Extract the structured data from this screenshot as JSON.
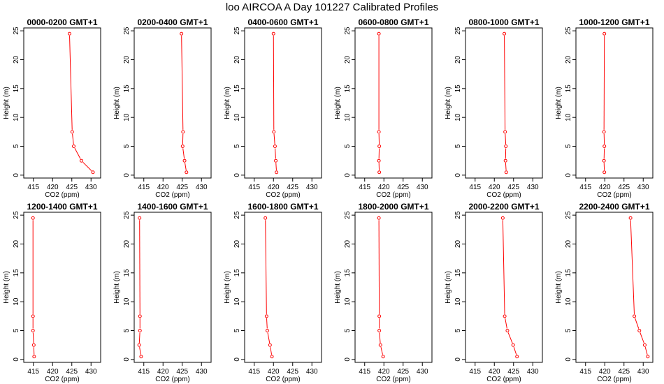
{
  "title": "loo AIRCOA A  Day 101227  Calibrated Profiles",
  "colors": {
    "line": "#ff0000",
    "axis": "#000000",
    "background": "#ffffff"
  },
  "chart_data": [
    {
      "type": "line",
      "title": "0000-0200 GMT+1",
      "xlabel": "CO2 (ppm)",
      "ylabel": "Height (m)",
      "xlim": [
        412.5,
        432.5
      ],
      "ylim": [
        -0.5,
        25.5
      ],
      "xticks": [
        415,
        420,
        425,
        430
      ],
      "yticks": [
        0,
        5,
        10,
        15,
        20,
        25
      ],
      "series": [
        {
          "x": [
            430.5,
            427.5,
            425.5,
            425.1,
            424.4
          ],
          "y": [
            0.5,
            2.5,
            5,
            7.5,
            24.5
          ]
        }
      ]
    },
    {
      "type": "line",
      "title": "0200-0400 GMT+1",
      "xlabel": "CO2 (ppm)",
      "ylabel": "Height (m)",
      "xlim": [
        412.5,
        432.5
      ],
      "ylim": [
        -0.5,
        25.5
      ],
      "xticks": [
        415,
        420,
        425,
        430
      ],
      "yticks": [
        0,
        5,
        10,
        15,
        20,
        25
      ],
      "series": [
        {
          "x": [
            426.1,
            425.6,
            425.1,
            425.2,
            424.8
          ],
          "y": [
            0.5,
            2.5,
            5,
            7.5,
            24.5
          ]
        }
      ]
    },
    {
      "type": "line",
      "title": "0400-0600 GMT+1",
      "xlabel": "CO2 (ppm)",
      "ylabel": "Height (m)",
      "xlim": [
        412.5,
        432.5
      ],
      "ylim": [
        -0.5,
        25.5
      ],
      "xticks": [
        415,
        420,
        425,
        430
      ],
      "yticks": [
        0,
        5,
        10,
        15,
        20,
        25
      ],
      "series": [
        {
          "x": [
            420.8,
            420.6,
            420.4,
            420.1,
            420.0
          ],
          "y": [
            0.5,
            2.5,
            5,
            7.5,
            24.5
          ]
        }
      ]
    },
    {
      "type": "line",
      "title": "0600-0800 GMT+1",
      "xlabel": "CO2 (ppm)",
      "ylabel": "Height (m)",
      "xlim": [
        412.5,
        432.5
      ],
      "ylim": [
        -0.5,
        25.5
      ],
      "xticks": [
        415,
        420,
        425,
        430
      ],
      "yticks": [
        0,
        5,
        10,
        15,
        20,
        25
      ],
      "series": [
        {
          "x": [
            418.8,
            418.7,
            418.8,
            418.7,
            418.7
          ],
          "y": [
            0.5,
            2.5,
            5,
            7.5,
            24.5
          ]
        }
      ]
    },
    {
      "type": "line",
      "title": "0800-1000 GMT+1",
      "xlabel": "CO2 (ppm)",
      "ylabel": "Height (m)",
      "xlim": [
        412.5,
        432.5
      ],
      "ylim": [
        -0.5,
        25.5
      ],
      "xticks": [
        415,
        420,
        425,
        430
      ],
      "yticks": [
        0,
        5,
        10,
        15,
        20,
        25
      ],
      "series": [
        {
          "x": [
            423.1,
            422.9,
            423.0,
            422.8,
            422.6
          ],
          "y": [
            0.5,
            2.5,
            5,
            7.5,
            24.5
          ]
        }
      ]
    },
    {
      "type": "line",
      "title": "1000-1200 GMT+1",
      "xlabel": "CO2 (ppm)",
      "ylabel": "Height (m)",
      "xlim": [
        412.5,
        432.5
      ],
      "ylim": [
        -0.5,
        25.5
      ],
      "xticks": [
        415,
        420,
        425,
        430
      ],
      "yticks": [
        0,
        5,
        10,
        15,
        20,
        25
      ],
      "series": [
        {
          "x": [
            419.9,
            419.8,
            419.9,
            419.8,
            419.9
          ],
          "y": [
            0.5,
            2.5,
            5,
            7.5,
            24.5
          ]
        }
      ]
    },
    {
      "type": "line",
      "title": "1200-1400 GMT+1",
      "xlabel": "CO2 (ppm)",
      "ylabel": "Height (m)",
      "xlim": [
        412.5,
        432.5
      ],
      "ylim": [
        -0.5,
        25.5
      ],
      "xticks": [
        415,
        420,
        425,
        430
      ],
      "yticks": [
        0,
        5,
        10,
        15,
        20,
        25
      ],
      "series": [
        {
          "x": [
            415.2,
            415.1,
            414.9,
            414.9,
            414.9
          ],
          "y": [
            0.5,
            2.5,
            5,
            7.5,
            24.5
          ]
        }
      ]
    },
    {
      "type": "line",
      "title": "1400-1600 GMT+1",
      "xlabel": "CO2 (ppm)",
      "ylabel": "Height (m)",
      "xlim": [
        412.5,
        432.5
      ],
      "ylim": [
        -0.5,
        25.5
      ],
      "xticks": [
        415,
        420,
        425,
        430
      ],
      "yticks": [
        0,
        5,
        10,
        15,
        20,
        25
      ],
      "series": [
        {
          "x": [
            414.3,
            413.8,
            414.0,
            414.0,
            413.9
          ],
          "y": [
            0.5,
            2.5,
            5,
            7.5,
            24.5
          ]
        }
      ]
    },
    {
      "type": "line",
      "title": "1600-1800 GMT+1",
      "xlabel": "CO2 (ppm)",
      "ylabel": "Height (m)",
      "xlim": [
        412.5,
        432.5
      ],
      "ylim": [
        -0.5,
        25.5
      ],
      "xticks": [
        415,
        420,
        425,
        430
      ],
      "yticks": [
        0,
        5,
        10,
        15,
        20,
        25
      ],
      "series": [
        {
          "x": [
            419.6,
            419.1,
            418.4,
            418.2,
            417.9
          ],
          "y": [
            0.5,
            2.5,
            5,
            7.5,
            24.5
          ]
        }
      ]
    },
    {
      "type": "line",
      "title": "1800-2000 GMT+1",
      "xlabel": "CO2 (ppm)",
      "ylabel": "Height (m)",
      "xlim": [
        412.5,
        432.5
      ],
      "ylim": [
        -0.5,
        25.5
      ],
      "xticks": [
        415,
        420,
        425,
        430
      ],
      "yticks": [
        0,
        5,
        10,
        15,
        20,
        25
      ],
      "series": [
        {
          "x": [
            419.8,
            419.1,
            418.8,
            418.8,
            418.7
          ],
          "y": [
            0.5,
            2.5,
            5,
            7.5,
            24.5
          ]
        }
      ]
    },
    {
      "type": "line",
      "title": "2000-2200 GMT+1",
      "xlabel": "CO2 (ppm)",
      "ylabel": "Height (m)",
      "xlim": [
        412.5,
        432.5
      ],
      "ylim": [
        -0.5,
        25.5
      ],
      "xticks": [
        415,
        420,
        425,
        430
      ],
      "yticks": [
        0,
        5,
        10,
        15,
        20,
        25
      ],
      "series": [
        {
          "x": [
            425.9,
            424.9,
            423.4,
            422.7,
            422.2
          ],
          "y": [
            0.5,
            2.5,
            5,
            7.5,
            24.5
          ]
        }
      ]
    },
    {
      "type": "line",
      "title": "2200-2400 GMT+1",
      "xlabel": "CO2 (ppm)",
      "ylabel": "Height (m)",
      "xlim": [
        412.5,
        432.5
      ],
      "ylim": [
        -0.5,
        25.5
      ],
      "xticks": [
        415,
        420,
        425,
        430
      ],
      "yticks": [
        0,
        5,
        10,
        15,
        20,
        25
      ],
      "series": [
        {
          "x": [
            431.2,
            430.4,
            429.0,
            427.7,
            426.7
          ],
          "y": [
            0.5,
            2.5,
            5,
            7.5,
            24.5
          ]
        }
      ]
    }
  ]
}
